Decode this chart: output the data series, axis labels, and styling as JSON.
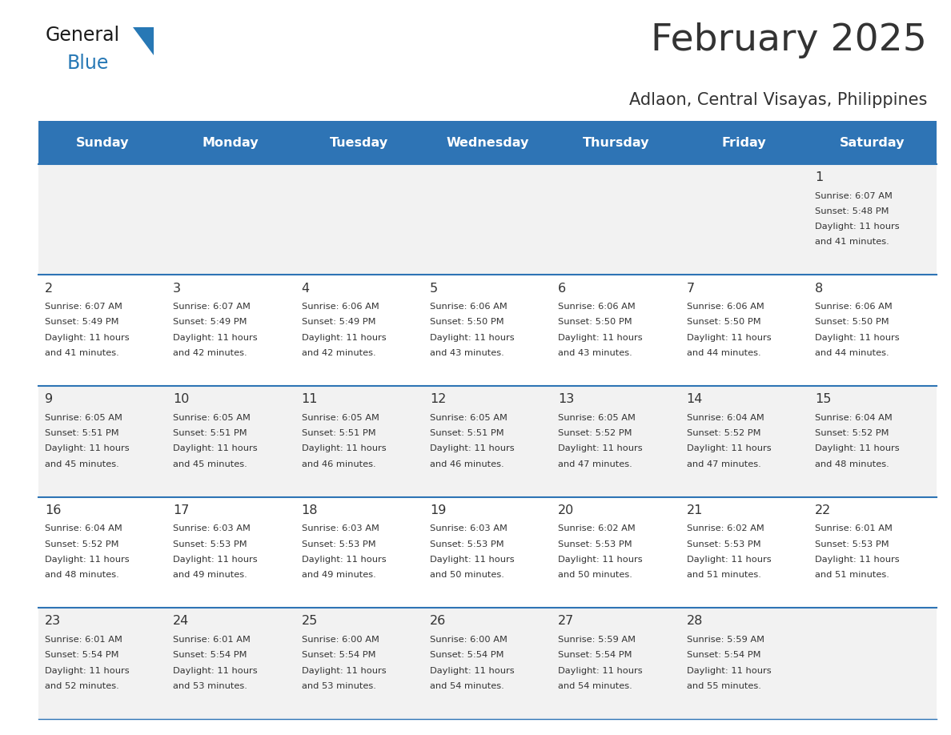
{
  "title": "February 2025",
  "subtitle": "Adlaon, Central Visayas, Philippines",
  "header_bg": "#2E74B5",
  "header_text": "#FFFFFF",
  "cell_bg_odd": "#F2F2F2",
  "cell_bg_even": "#FFFFFF",
  "separator_color": "#2E74B5",
  "text_color": "#333333",
  "days_of_week": [
    "Sunday",
    "Monday",
    "Tuesday",
    "Wednesday",
    "Thursday",
    "Friday",
    "Saturday"
  ],
  "logo_general_color": "#1a1a1a",
  "logo_blue_color": "#2778B5",
  "calendar_data": [
    [
      null,
      null,
      null,
      null,
      null,
      null,
      {
        "day": 1,
        "sunrise": "6:07 AM",
        "sunset": "5:48 PM",
        "daylight": "11 hours and 41 minutes."
      }
    ],
    [
      {
        "day": 2,
        "sunrise": "6:07 AM",
        "sunset": "5:49 PM",
        "daylight": "11 hours and 41 minutes."
      },
      {
        "day": 3,
        "sunrise": "6:07 AM",
        "sunset": "5:49 PM",
        "daylight": "11 hours and 42 minutes."
      },
      {
        "day": 4,
        "sunrise": "6:06 AM",
        "sunset": "5:49 PM",
        "daylight": "11 hours and 42 minutes."
      },
      {
        "day": 5,
        "sunrise": "6:06 AM",
        "sunset": "5:50 PM",
        "daylight": "11 hours and 43 minutes."
      },
      {
        "day": 6,
        "sunrise": "6:06 AM",
        "sunset": "5:50 PM",
        "daylight": "11 hours and 43 minutes."
      },
      {
        "day": 7,
        "sunrise": "6:06 AM",
        "sunset": "5:50 PM",
        "daylight": "11 hours and 44 minutes."
      },
      {
        "day": 8,
        "sunrise": "6:06 AM",
        "sunset": "5:50 PM",
        "daylight": "11 hours and 44 minutes."
      }
    ],
    [
      {
        "day": 9,
        "sunrise": "6:05 AM",
        "sunset": "5:51 PM",
        "daylight": "11 hours and 45 minutes."
      },
      {
        "day": 10,
        "sunrise": "6:05 AM",
        "sunset": "5:51 PM",
        "daylight": "11 hours and 45 minutes."
      },
      {
        "day": 11,
        "sunrise": "6:05 AM",
        "sunset": "5:51 PM",
        "daylight": "11 hours and 46 minutes."
      },
      {
        "day": 12,
        "sunrise": "6:05 AM",
        "sunset": "5:51 PM",
        "daylight": "11 hours and 46 minutes."
      },
      {
        "day": 13,
        "sunrise": "6:05 AM",
        "sunset": "5:52 PM",
        "daylight": "11 hours and 47 minutes."
      },
      {
        "day": 14,
        "sunrise": "6:04 AM",
        "sunset": "5:52 PM",
        "daylight": "11 hours and 47 minutes."
      },
      {
        "day": 15,
        "sunrise": "6:04 AM",
        "sunset": "5:52 PM",
        "daylight": "11 hours and 48 minutes."
      }
    ],
    [
      {
        "day": 16,
        "sunrise": "6:04 AM",
        "sunset": "5:52 PM",
        "daylight": "11 hours and 48 minutes."
      },
      {
        "day": 17,
        "sunrise": "6:03 AM",
        "sunset": "5:53 PM",
        "daylight": "11 hours and 49 minutes."
      },
      {
        "day": 18,
        "sunrise": "6:03 AM",
        "sunset": "5:53 PM",
        "daylight": "11 hours and 49 minutes."
      },
      {
        "day": 19,
        "sunrise": "6:03 AM",
        "sunset": "5:53 PM",
        "daylight": "11 hours and 50 minutes."
      },
      {
        "day": 20,
        "sunrise": "6:02 AM",
        "sunset": "5:53 PM",
        "daylight": "11 hours and 50 minutes."
      },
      {
        "day": 21,
        "sunrise": "6:02 AM",
        "sunset": "5:53 PM",
        "daylight": "11 hours and 51 minutes."
      },
      {
        "day": 22,
        "sunrise": "6:01 AM",
        "sunset": "5:53 PM",
        "daylight": "11 hours and 51 minutes."
      }
    ],
    [
      {
        "day": 23,
        "sunrise": "6:01 AM",
        "sunset": "5:54 PM",
        "daylight": "11 hours and 52 minutes."
      },
      {
        "day": 24,
        "sunrise": "6:01 AM",
        "sunset": "5:54 PM",
        "daylight": "11 hours and 53 minutes."
      },
      {
        "day": 25,
        "sunrise": "6:00 AM",
        "sunset": "5:54 PM",
        "daylight": "11 hours and 53 minutes."
      },
      {
        "day": 26,
        "sunrise": "6:00 AM",
        "sunset": "5:54 PM",
        "daylight": "11 hours and 54 minutes."
      },
      {
        "day": 27,
        "sunrise": "5:59 AM",
        "sunset": "5:54 PM",
        "daylight": "11 hours and 54 minutes."
      },
      {
        "day": 28,
        "sunrise": "5:59 AM",
        "sunset": "5:54 PM",
        "daylight": "11 hours and 55 minutes."
      },
      null
    ]
  ]
}
